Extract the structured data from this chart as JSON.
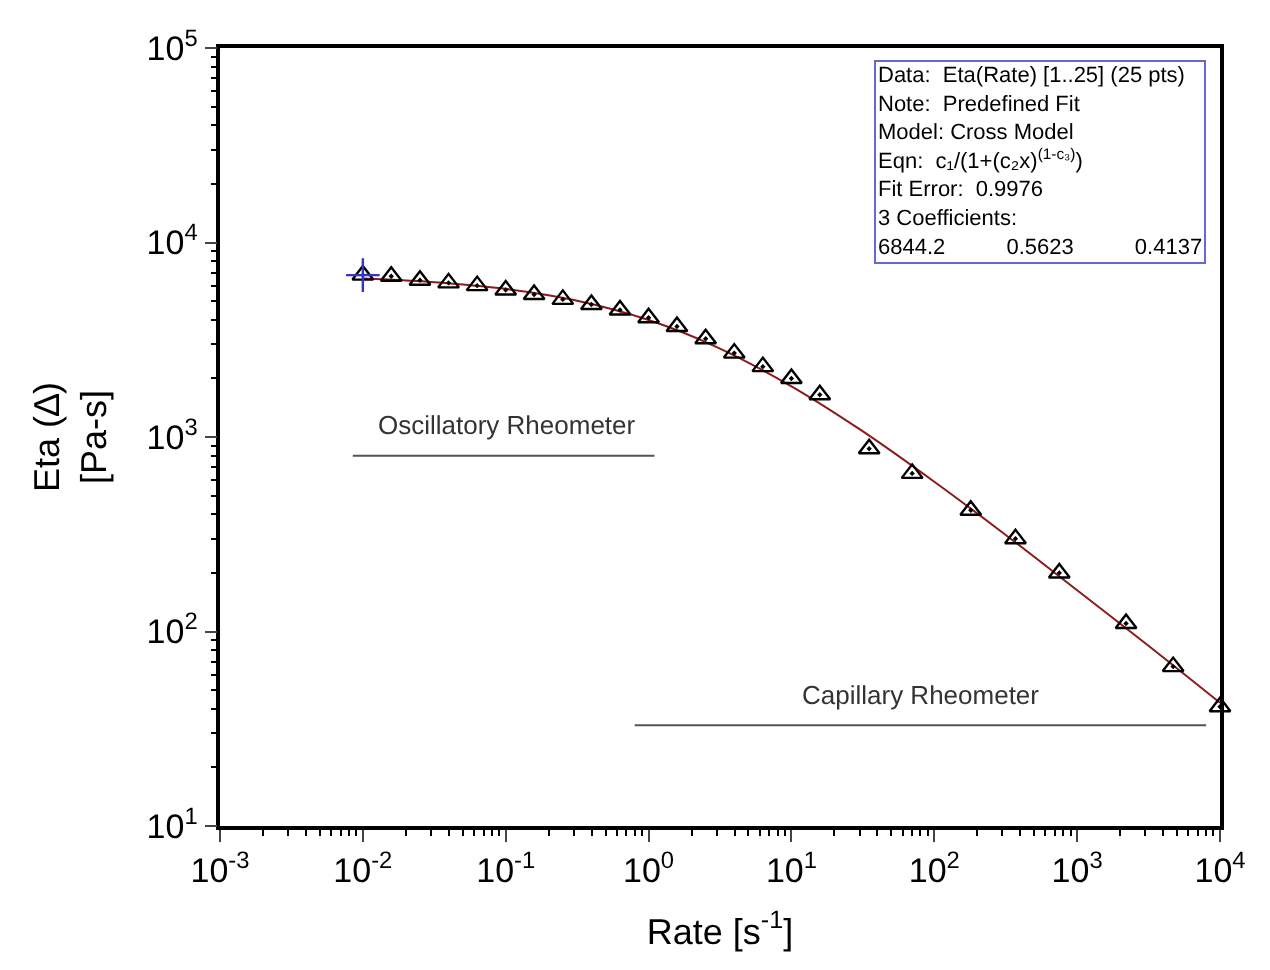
{
  "chart_data": {
    "type": "scatter",
    "xlabel": "Rate [s$^{-1}$]",
    "ylabel": "Eta (∆)\n[Pa-s]",
    "log": "xy",
    "xlim": [
      0.001,
      10000
    ],
    "ylim": [
      10,
      100000
    ],
    "xticks": [
      {
        "value": 0.001,
        "label": "10$^{-3}$"
      },
      {
        "value": 0.01,
        "label": "10$^{-2}$"
      },
      {
        "value": 0.1,
        "label": "10$^{-1}$"
      },
      {
        "value": 1,
        "label": "10$^{0}$"
      },
      {
        "value": 10,
        "label": "10$^{1}$"
      },
      {
        "value": 100,
        "label": "10$^{2}$"
      },
      {
        "value": 1000,
        "label": "10$^{3}$"
      },
      {
        "value": 10000,
        "label": "10$^{4}$"
      }
    ],
    "yticks": [
      {
        "value": 10,
        "label": "10$^{1}$"
      },
      {
        "value": 100,
        "label": "10$^{2}$"
      },
      {
        "value": 1000,
        "label": "10$^{3}$"
      },
      {
        "value": 10000,
        "label": "10$^{4}$"
      },
      {
        "value": 100000,
        "label": "10$^{5}$"
      }
    ],
    "series": [
      {
        "type": "line",
        "color": "#8b1a1a",
        "marker": "none",
        "line_style": "solid",
        "x": [
          0.01,
          0.03,
          0.1,
          0.3,
          1,
          3,
          10,
          30,
          100,
          300,
          1000,
          3000,
          10000
        ],
        "values": [
          6530,
          6271,
          5776,
          5062,
          3993,
          2901,
          1823,
          1097,
          589,
          323,
          163,
          87,
          43
        ]
      },
      {
        "color": "#000000",
        "marker": "triangle",
        "x": [
          0.01,
          0.0158,
          0.0251,
          0.0398,
          0.0631,
          0.1,
          0.158,
          0.251,
          0.398,
          0.631,
          1,
          1.58,
          2.51,
          3.98,
          6.31,
          10,
          15.8,
          35,
          70,
          180,
          370,
          750,
          2200,
          4700,
          10000
        ],
        "values": [
          6800,
          6700,
          6400,
          6200,
          6000,
          5700,
          5400,
          5100,
          4800,
          4500,
          4100,
          3700,
          3200,
          2700,
          2300,
          2000,
          1650,
          870,
          650,
          420,
          300,
          200,
          110,
          66,
          41
        ]
      },
      {
        "color": "#3333cc",
        "marker": "cross",
        "x": [
          0.01
        ],
        "values": [
          6800
        ]
      },
      {
        "type": "line",
        "color": "#555555",
        "marker": "none",
        "line_style": "solid",
        "x": [
          0.0085,
          1.1
        ],
        "values": [
          800,
          800
        ]
      },
      {
        "type": "line",
        "color": "#555555",
        "marker": "none",
        "line_style": "solid",
        "x": [
          0.8,
          8000
        ],
        "values": [
          33,
          33
        ]
      }
    ],
    "annotations": [
      "Data:  Eta(Rate) [1..25] (25 pts)\nNote:  Predefined Fit\nModel: Cross Model\nEqn:  c₁/(1+(c₂x)$^{(1-c₃)}$)\nFit Error:  0.9976\n3 Coefficients:\n6844.2          0.5623          0.4137",
      "Oscillatory Rheometer",
      "Capillary Rheometer"
    ]
  }
}
